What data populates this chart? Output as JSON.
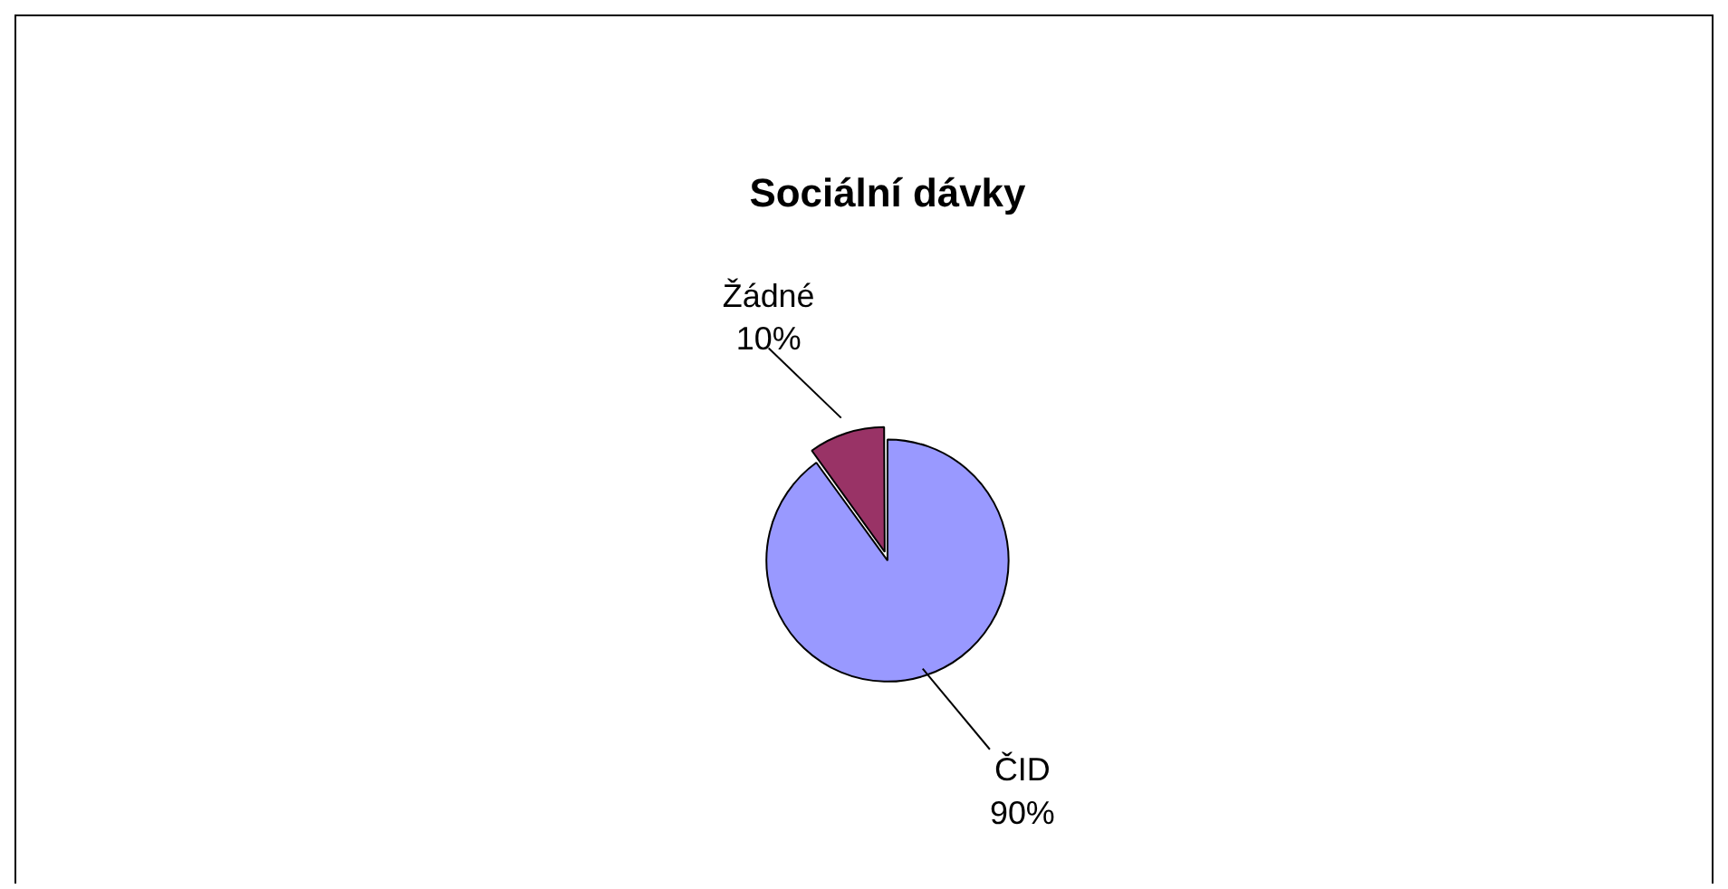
{
  "chart_data": {
    "type": "pie",
    "title": "Sociální dávky",
    "categories": [
      "ČID",
      "Žádné"
    ],
    "values": [
      90,
      10
    ],
    "colors": [
      "#9999ff",
      "#993366"
    ],
    "value_labels": [
      "90%",
      "10%"
    ],
    "legend": false
  }
}
